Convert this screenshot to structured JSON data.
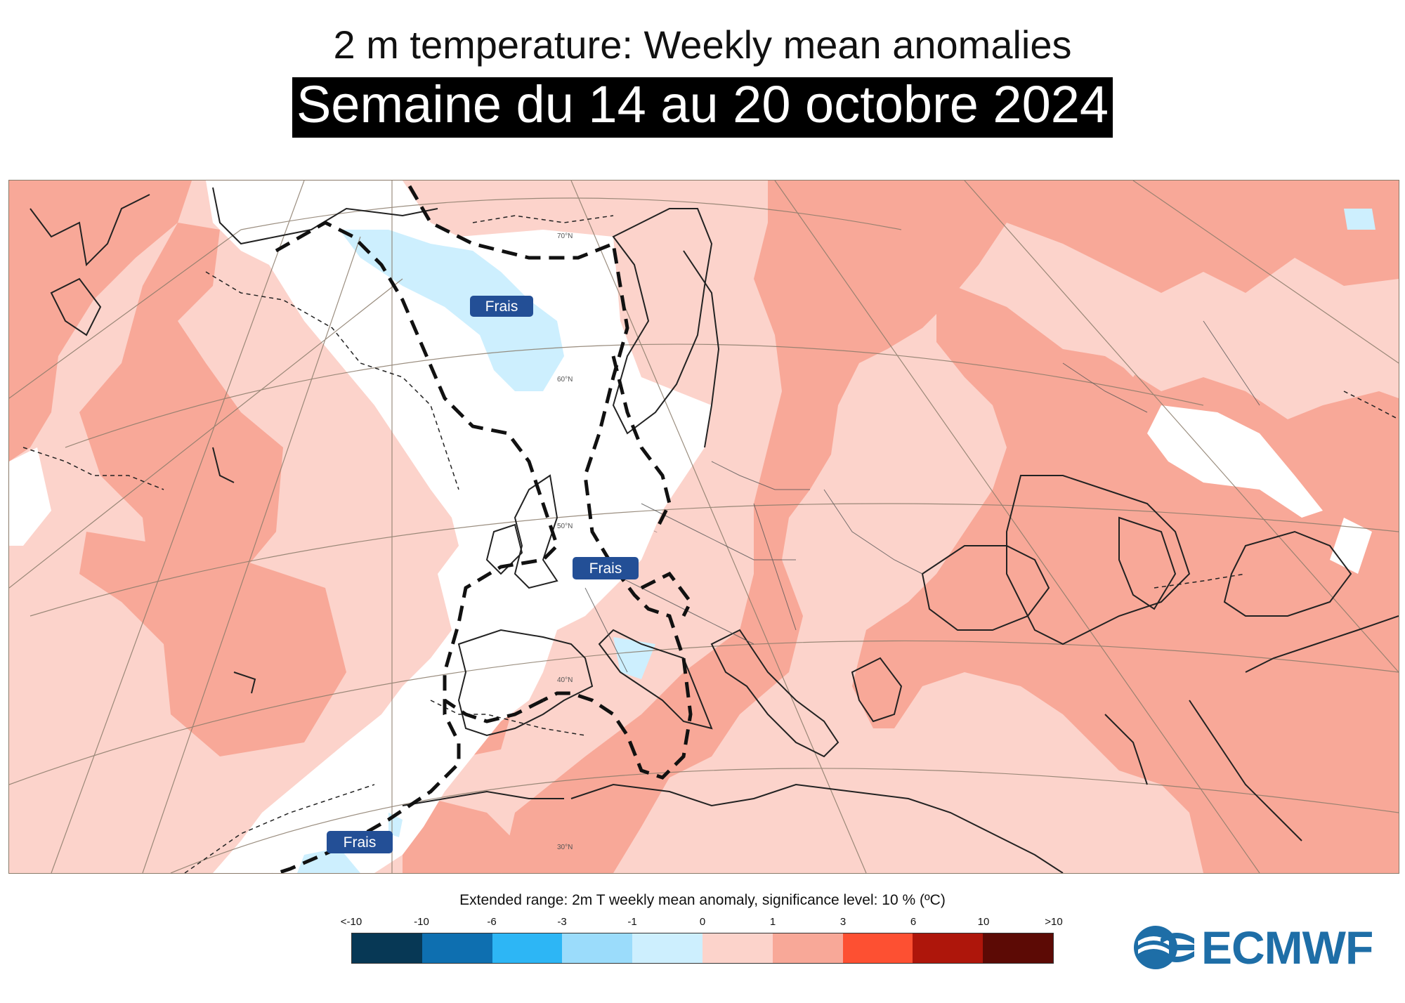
{
  "header": {
    "title": "2 m temperature: Weekly mean anomalies",
    "subtitle": "Semaine du 14 au 20 octobre 2024"
  },
  "map": {
    "region": "Europe / North Atlantic",
    "annotations": [
      "Frais",
      "Frais",
      "Frais"
    ],
    "latitude_labels": [
      "70°N",
      "60°N",
      "50°N",
      "40°N",
      "30°N"
    ],
    "colors": {
      "warm_light": "#fcd3cb",
      "warm_medium": "#f8a898",
      "cool_light": "#cdeffe",
      "land_outline": "#222222",
      "grid": "#8a7b6a",
      "label_box": "#234f96"
    }
  },
  "legend": {
    "caption": "Extended range: 2m T weekly mean anomaly, significance level: 10 % (ºC)",
    "tick_labels": [
      "<-10",
      "-10",
      "-6",
      "-3",
      "-1",
      "0",
      "1",
      "3",
      "6",
      "10",
      ">10"
    ],
    "colors": [
      "#073855",
      "#0e6fb0",
      "#2db6f5",
      "#9bdcfb",
      "#cdeffe",
      "#fcd3cb",
      "#f8a898",
      "#fd5032",
      "#ae160b",
      "#5c0a05"
    ]
  },
  "logo": {
    "text": "ECMWF",
    "icon": "ecmwf-logo-icon"
  }
}
